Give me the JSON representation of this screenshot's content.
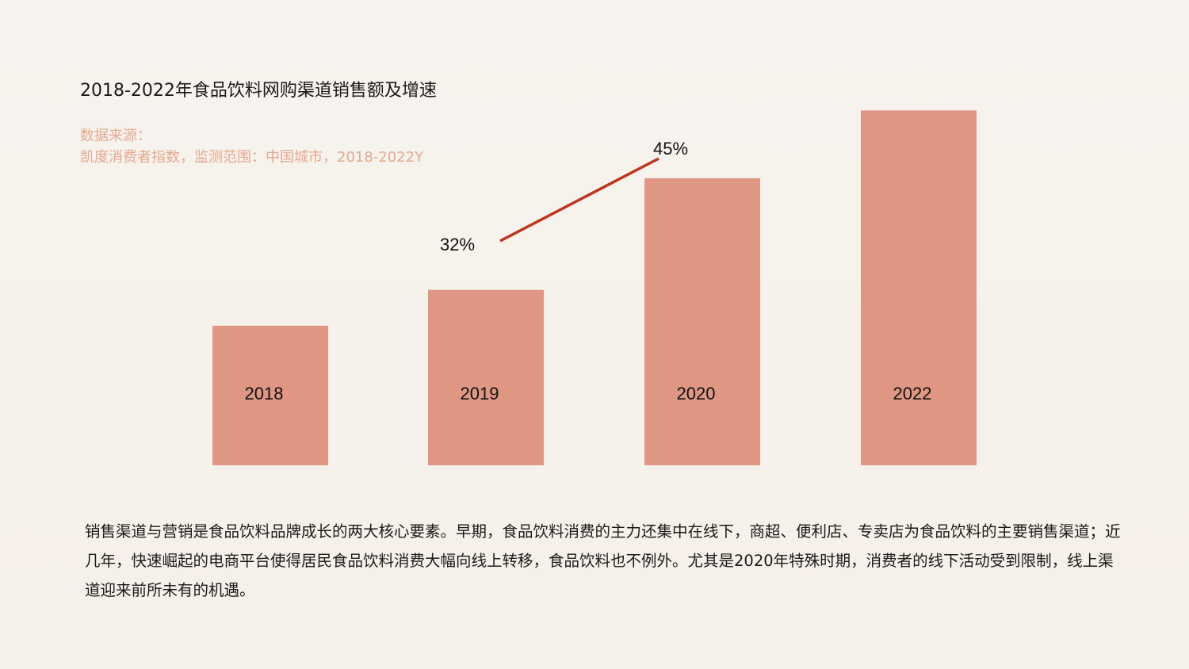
{
  "title": "2018-2022年食品饮料网购渠道销售额及增速",
  "source": {
    "label": "数据来源：",
    "text": "凯度消费者指数，监测范围：中国城市，2018-2022Y"
  },
  "chart_data": {
    "type": "bar",
    "categories": [
      "2018",
      "2019",
      "2020",
      "2022"
    ],
    "series": [
      {
        "values": [
          35,
          44,
          72,
          89
        ]
      }
    ],
    "ylim": [
      0,
      100
    ],
    "growth_line": {
      "type": "line",
      "categories": [
        "2019",
        "2020"
      ],
      "values": [
        32,
        45
      ],
      "labels": [
        "32%",
        "45%"
      ]
    },
    "colors": {
      "bar": "#df9783",
      "line": "#c0341f"
    },
    "grid": false,
    "legend": "none"
  },
  "body": "销售渠道与营销是食品饮料品牌成长的两大核心要素。早期，食品饮料消费的主力还集中在线下，商超、便利店、专卖店为食品饮料的主要销售渠道；近几年，快速崛起的电商平台使得居民食品饮料消费大幅向线上转移，食品饮料也不例外。尤其是2020年特殊时期，消费者的线下活动受到限制，线上渠道迎来前所未有的机遇。"
}
